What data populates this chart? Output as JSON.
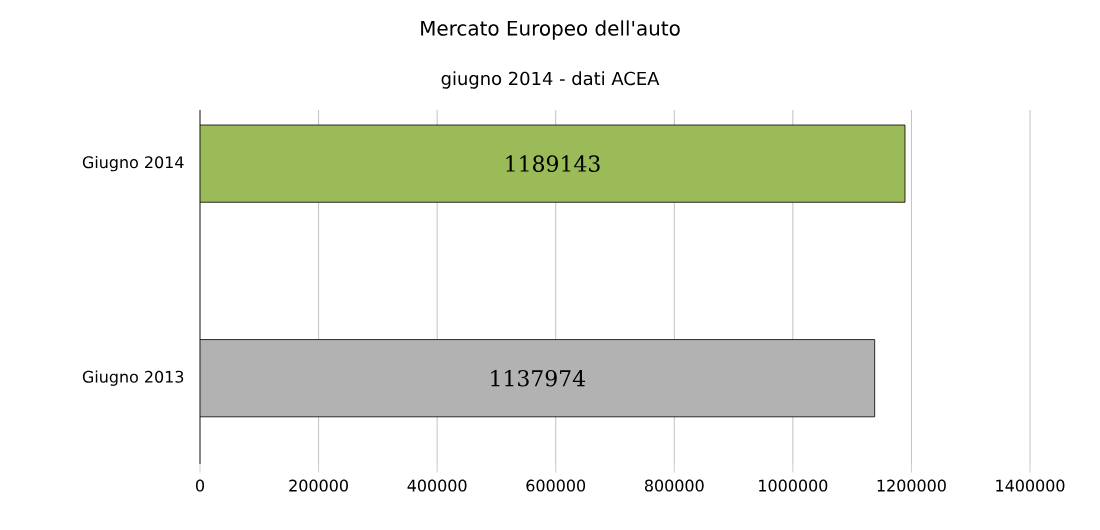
{
  "chart_data": {
    "type": "bar",
    "orientation": "horizontal",
    "title": "Mercato Europeo dell'auto",
    "subtitle": "giugno 2014 - dati ACEA",
    "categories": [
      "Giugno 2014",
      "Giugno 2013"
    ],
    "values": [
      1189143,
      1137974
    ],
    "colors": [
      "#9bbb59",
      "#b2b2b2"
    ],
    "value_labels": [
      "1189143",
      "1137974"
    ],
    "xlim": [
      0,
      1400000
    ],
    "xticks": [
      0,
      200000,
      400000,
      600000,
      800000,
      1000000,
      1200000,
      1400000
    ],
    "grid": "x"
  }
}
